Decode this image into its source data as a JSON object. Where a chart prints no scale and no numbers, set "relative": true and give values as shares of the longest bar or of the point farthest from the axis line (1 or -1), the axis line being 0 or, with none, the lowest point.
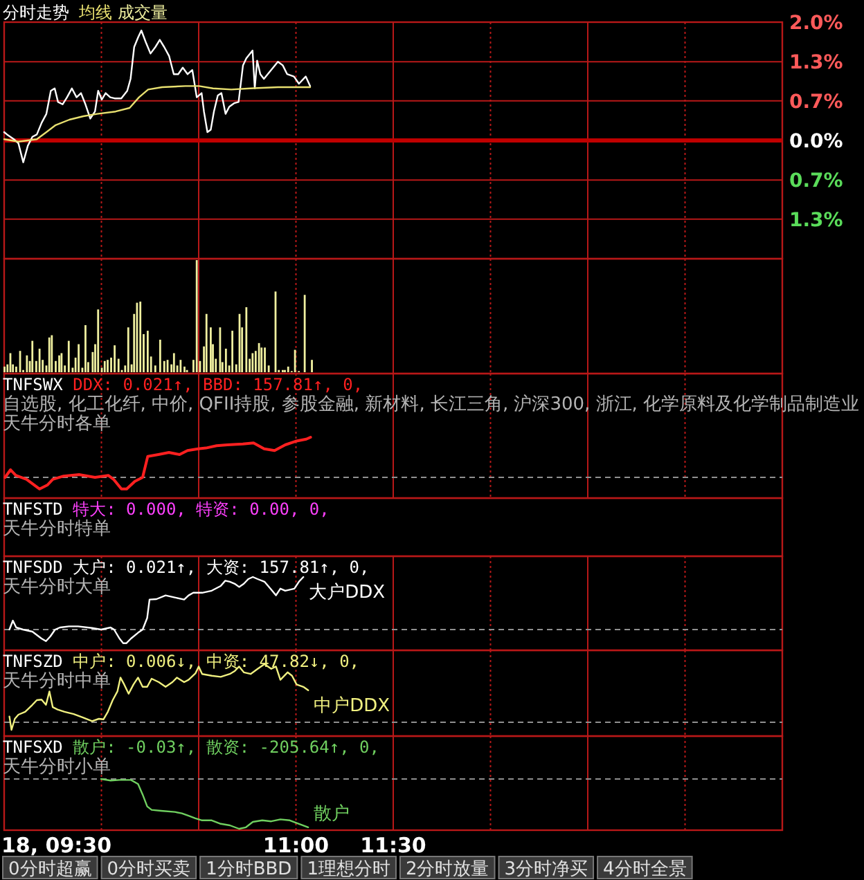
{
  "chart_data": [
    {
      "type": "line",
      "title": "分时走势",
      "legend": "top left",
      "xlim": [
        9.5,
        13.5
      ],
      "xticks": [
        {
          "value": 9.5,
          "label": null
        },
        {
          "value": 10,
          "label": null
        },
        {
          "value": 10.5,
          "label": null
        },
        {
          "value": 11,
          "label": null
        },
        {
          "value": 11.5,
          "label": null
        },
        {
          "value": 12,
          "label": null
        },
        {
          "value": 12.5,
          "label": null
        },
        {
          "value": 13,
          "label": null
        },
        {
          "value": 13.5,
          "label": null
        }
      ],
      "ylim": [
        -2.0,
        2.0
      ],
      "yticks": [
        {
          "value": 2.0,
          "label": "2.0%"
        },
        {
          "value": 1.33,
          "label": "1.3%"
        },
        {
          "value": 0.67,
          "label": "0.7%"
        },
        {
          "value": 0,
          "label": "0.0%"
        },
        {
          "value": -0.67,
          "label": "0.7%"
        },
        {
          "value": -1.33,
          "label": "1.3%"
        },
        {
          "value": -2.0,
          "label": null
        }
      ],
      "grid": true,
      "tick_labels": "y",
      "ref_lines": [
        {
          "axis": "y",
          "value": 0,
          "color": "#c00000"
        }
      ],
      "series": [
        {
          "color": "#ffffff",
          "x": [
            9.5,
            9.515,
            9.55,
            9.573,
            9.598,
            9.622,
            9.645,
            9.668,
            9.693,
            9.717,
            9.74,
            9.76,
            9.777,
            9.8,
            9.823,
            9.848,
            9.872,
            9.895,
            9.918,
            9.943,
            9.967,
            9.983,
            10.002,
            10.022,
            10.045,
            10.068,
            10.102,
            10.133,
            10.15,
            10.168,
            10.188,
            10.205,
            10.228,
            10.252,
            10.277,
            10.3,
            10.323,
            10.348,
            10.372,
            10.395,
            10.418,
            10.443,
            10.467,
            10.49,
            10.515,
            10.527,
            10.545,
            10.562,
            10.578,
            10.598,
            10.617,
            10.638,
            10.657,
            10.682,
            10.705,
            10.728,
            10.745,
            10.777,
            10.788,
            10.8,
            10.817,
            10.835,
            10.872,
            10.907,
            10.932,
            10.955,
            10.99,
            11.015,
            11.05,
            11.073
          ],
          "values": [
            0.14,
            0.1,
            0.02,
            -0.05,
            -0.37,
            -0.09,
            0.06,
            0.1,
            0.3,
            0.45,
            0.84,
            0.88,
            0.65,
            0.61,
            0.73,
            0.88,
            0.73,
            0.8,
            0.61,
            0.37,
            0.49,
            0.84,
            0.69,
            0.8,
            0.73,
            0.71,
            0.71,
            0.84,
            1.04,
            1.58,
            1.74,
            1.86,
            1.66,
            1.47,
            1.58,
            1.7,
            1.58,
            1.43,
            1.12,
            1.12,
            1.23,
            1.12,
            1.19,
            0.73,
            0.8,
            0.49,
            0.14,
            0.18,
            0.49,
            0.76,
            0.8,
            0.45,
            0.57,
            0.63,
            0.65,
            1.27,
            1.39,
            1.52,
            0.88,
            1.35,
            1.12,
            1.04,
            1.19,
            1.33,
            1.27,
            1.12,
            1.08,
            0.96,
            1.08,
            0.92
          ]
        },
        {
          "name": "均线",
          "color": "#e8e070",
          "x": [
            9.5,
            9.573,
            9.668,
            9.717,
            9.765,
            9.835,
            9.907,
            9.978,
            10.073,
            10.145,
            10.193,
            10.24,
            10.312,
            10.432,
            10.502,
            10.573,
            10.668,
            10.765,
            10.907,
            11.073
          ],
          "values": [
            0.02,
            -0.02,
            0.02,
            0.14,
            0.26,
            0.35,
            0.41,
            0.45,
            0.49,
            0.55,
            0.73,
            0.86,
            0.9,
            0.92,
            0.92,
            0.88,
            0.86,
            0.88,
            0.9,
            0.9
          ]
        }
      ]
    },
    {
      "type": "bar",
      "relative": true,
      "legend": "top left",
      "xlim": [
        9.5,
        13.5
      ],
      "xticks": [
        {
          "value": 9.5,
          "label": null
        },
        {
          "value": 10,
          "label": null
        },
        {
          "value": 10.5,
          "label": null
        },
        {
          "value": 11,
          "label": null
        },
        {
          "value": 11.5,
          "label": null
        },
        {
          "value": 12,
          "label": null
        },
        {
          "value": 12.5,
          "label": null
        },
        {
          "value": 13,
          "label": null
        },
        {
          "value": 13.5,
          "label": null
        }
      ],
      "grid": "x",
      "tick_labels": false,
      "x": [
        9.502,
        9.517,
        9.532,
        9.545,
        9.562,
        9.582,
        9.598,
        9.617,
        9.632,
        9.645,
        9.665,
        9.682,
        9.698,
        9.717,
        9.732,
        9.745,
        9.765,
        9.783,
        9.795,
        9.812,
        9.832,
        9.852,
        9.867,
        9.883,
        9.902,
        9.918,
        9.932,
        9.955,
        9.968,
        9.983,
        10.002,
        10.017,
        10.032,
        10.05,
        10.068,
        10.088,
        10.105,
        10.122,
        10.138,
        10.155,
        10.168,
        10.183,
        10.2,
        10.217,
        10.238,
        10.255,
        10.277,
        10.302,
        10.323,
        10.34,
        10.36,
        10.373,
        10.39,
        10.407,
        10.427,
        10.44,
        10.473,
        10.49,
        10.507,
        10.527,
        10.54,
        10.562,
        10.573,
        10.588,
        10.61,
        10.622,
        10.64,
        10.657,
        10.673,
        10.693,
        10.71,
        10.723,
        10.745,
        10.762,
        10.777,
        10.793,
        10.81,
        10.823,
        10.84,
        10.86,
        10.895,
        10.912,
        10.932,
        10.943,
        10.96,
        10.978,
        10.995,
        11.015,
        11.045,
        11.082
      ],
      "series": [
        {
          "name": "成交量",
          "color": "#f0f0a0",
          "values": [
            0.05,
            0.07,
            0.17,
            0.07,
            0.05,
            0.19,
            0.02,
            0.15,
            0.1,
            0.28,
            0.1,
            0.21,
            0.11,
            0.06,
            0.31,
            0.33,
            0.1,
            0.15,
            0.17,
            0.06,
            0.28,
            0.04,
            0.13,
            0.25,
            0.04,
            0.42,
            0.09,
            0.18,
            0.25,
            0.56,
            0.04,
            0.1,
            0.11,
            0.13,
            0.24,
            0.12,
            0.02,
            0.06,
            0.4,
            0.07,
            0.52,
            0.62,
            0.63,
            0.34,
            0.37,
            0.14,
            0.06,
            0.29,
            0.1,
            0.11,
            0.07,
            0.17,
            0.06,
            0.11,
            0.05,
            0.02,
            0.11,
            1,
            0.1,
            0.23,
            0.52,
            0.4,
            0.25,
            0.12,
            0.4,
            0.09,
            0.21,
            0.06,
            0.37,
            0.07,
            0.52,
            0.4,
            0.58,
            0.12,
            0.17,
            0.19,
            0.26,
            0.22,
            0.22,
            0.06,
            0.72,
            0.02,
            0.02,
            0.02,
            0.05,
            0.01,
            0.2,
            0.01,
            0.69,
            0.11
          ]
        }
      ]
    },
    {
      "type": "line",
      "relative": true,
      "title": "TNFSWX",
      "subtitle": "DDX: 0.021↑, BBD: 157.81↑, 0,",
      "annotations": [
        "自选股, 化工化纤, 中价, QFII持股, 参股金融, 新材料, 长江三角, 沪深300, 浙江, 化学原料及化学制品制造业",
        "天牛分时各单"
      ],
      "xlim": [
        9.5,
        13.5
      ],
      "xticks": [
        {
          "value": 9.5,
          "label": null
        },
        {
          "value": 10,
          "label": null
        },
        {
          "value": 10.5,
          "label": null
        },
        {
          "value": 11,
          "label": null
        },
        {
          "value": 11.5,
          "label": null
        },
        {
          "value": 12,
          "label": null
        },
        {
          "value": 12.5,
          "label": null
        },
        {
          "value": 13,
          "label": null
        },
        {
          "value": 13.5,
          "label": null
        }
      ],
      "grid": "x",
      "tick_labels": false,
      "ref_lines": [
        {
          "axis": "y",
          "value": 0,
          "color": "#909090",
          "line_style": "dashed"
        }
      ],
      "series": [
        {
          "color": "#ff2020",
          "x": [
            9.505,
            9.533,
            9.56,
            9.615,
            9.682,
            9.723,
            9.75,
            9.805,
            9.885,
            9.967,
            10.035,
            10.062,
            10.103,
            10.13,
            10.172,
            10.212,
            10.238,
            10.293,
            10.347,
            10.402,
            10.442,
            10.497,
            10.537,
            10.592,
            10.647,
            10.727,
            10.782,
            10.837,
            10.89,
            10.945,
            10.998,
            11.053,
            11.075
          ],
          "values": [
            0,
            0.19,
            0.05,
            -0.05,
            -0.29,
            -0.19,
            -0.05,
            0.03,
            0.07,
            0,
            0.05,
            -0.05,
            -0.29,
            -0.29,
            -0.1,
            0,
            0.52,
            0.57,
            0.62,
            0.57,
            0.67,
            0.71,
            0.73,
            0.79,
            0.81,
            0.83,
            0.86,
            0.71,
            0.67,
            0.81,
            0.9,
            0.95,
            1
          ]
        }
      ]
    },
    {
      "type": "other",
      "title": "TNFSTD",
      "subtitle": "特大: 0.000, 特资: 0.00, 0,",
      "annotations": [
        "天牛分时特单"
      ]
    },
    {
      "type": "line",
      "relative": true,
      "title": "TNFSDD",
      "subtitle": "大户: 0.021↑, 大资: 157.81↑, 0,",
      "annotations": [
        "天牛分时大单"
      ],
      "xlim": [
        9.5,
        13.5
      ],
      "xticks": [
        {
          "value": 9.5,
          "label": null
        },
        {
          "value": 10,
          "label": null
        },
        {
          "value": 10.5,
          "label": null
        },
        {
          "value": 11,
          "label": null
        },
        {
          "value": 11.5,
          "label": null
        },
        {
          "value": 12,
          "label": null
        },
        {
          "value": 12.5,
          "label": null
        },
        {
          "value": 13,
          "label": null
        },
        {
          "value": 13.5,
          "label": null
        }
      ],
      "grid": "x",
      "tick_labels": false,
      "ref_lines": [
        {
          "axis": "y",
          "value": 0,
          "color": "#909090",
          "line_style": "dashed"
        }
      ],
      "series": [
        {
          "name": "大户DDX",
          "color": "#ffffff",
          "x": [
            9.527,
            9.545,
            9.562,
            9.597,
            9.645,
            9.692,
            9.715,
            9.738,
            9.762,
            9.787,
            9.833,
            9.88,
            9.952,
            9.998,
            10.047,
            10.065,
            10.093,
            10.112,
            10.128,
            10.152,
            10.188,
            10.212,
            10.235,
            10.247,
            10.283,
            10.33,
            10.377,
            10.425,
            10.448,
            10.472,
            10.518,
            10.567,
            10.613,
            10.637,
            10.66,
            10.685,
            10.708,
            10.732,
            10.755,
            10.778,
            10.803,
            10.838,
            10.873,
            10.897,
            10.92,
            10.945,
            10.992,
            11.015,
            11.038
          ],
          "values": [
            0,
            0.17,
            0.04,
            0,
            -0.04,
            -0.17,
            -0.22,
            -0.13,
            0,
            0.04,
            0.06,
            0.06,
            0.03,
            0,
            0.04,
            0,
            -0.17,
            -0.26,
            -0.26,
            -0.17,
            -0.06,
            0,
            0.22,
            0.57,
            0.58,
            0.65,
            0.61,
            0.57,
            0.65,
            0.7,
            0.7,
            0.74,
            0.83,
            0.93,
            0.91,
            0.87,
            0.81,
            0.87,
            0.96,
            1,
            0.96,
            0.91,
            0.76,
            0.65,
            0.78,
            0.74,
            0.78,
            0.91,
            1
          ]
        }
      ]
    },
    {
      "type": "line",
      "relative": true,
      "title": "TNFSZD",
      "subtitle": "中户: 0.006↓, 中资: 47.82↓, 0,",
      "annotations": [
        "天牛分时中单"
      ],
      "xlim": [
        9.5,
        13.5
      ],
      "xticks": [
        {
          "value": 9.5,
          "label": null
        },
        {
          "value": 10,
          "label": null
        },
        {
          "value": 10.5,
          "label": null
        },
        {
          "value": 11,
          "label": null
        },
        {
          "value": 11.5,
          "label": null
        },
        {
          "value": 12,
          "label": null
        },
        {
          "value": 12.5,
          "label": null
        },
        {
          "value": 13,
          "label": null
        },
        {
          "value": 13.5,
          "label": null
        }
      ],
      "grid": "x",
      "tick_labels": false,
      "ref_lines": [
        {
          "axis": "y",
          "value": 0,
          "color": "#909090",
          "line_style": "dashed"
        }
      ],
      "series": [
        {
          "name": "中户DDX",
          "color": "#f0f080",
          "x": [
            9.527,
            9.538,
            9.555,
            9.573,
            9.608,
            9.645,
            9.668,
            9.692,
            9.715,
            9.733,
            9.75,
            9.775,
            9.81,
            9.857,
            9.905,
            9.952,
            9.987,
            10.01,
            10.033,
            10.058,
            10.082,
            10.098,
            10.117,
            10.14,
            10.165,
            10.188,
            10.212,
            10.235,
            10.258,
            10.295,
            10.33,
            10.365,
            10.388,
            10.425,
            10.448,
            10.483,
            10.5,
            10.518,
            10.567,
            10.613,
            10.66,
            10.685,
            10.708,
            10.732,
            10.767,
            10.803,
            10.838,
            10.873,
            10.897,
            10.92,
            10.957,
            10.98,
            11.003,
            11.038,
            11.063
          ],
          "values": [
            0.1,
            -0.13,
            0.06,
            0.13,
            0.18,
            0.3,
            0.38,
            0.39,
            0.3,
            0.53,
            0.26,
            0.22,
            0.18,
            0.14,
            0.08,
            0.02,
            0.06,
            0.05,
            0.18,
            0.38,
            0.53,
            0.77,
            0.65,
            0.49,
            0.65,
            0.77,
            0.61,
            0.61,
            0.75,
            0.69,
            0.61,
            0.69,
            0.77,
            0.69,
            0.73,
            0.84,
            0.96,
            0.83,
            0.8,
            0.78,
            0.83,
            0.88,
            0.96,
            0.86,
            0.83,
            0.92,
            1,
            0.92,
            0.96,
            0.73,
            0.86,
            0.8,
            0.65,
            0.61,
            0.55
          ]
        }
      ]
    },
    {
      "type": "line",
      "relative": true,
      "title": "TNFSXD",
      "subtitle": "散户: -0.03↑, 散资: -205.64↑, 0,",
      "annotations": [
        "天牛分时小单",
        "0分时超赢",
        "0分时买卖",
        "1分时BBD",
        "1理想分时",
        "2分时放量",
        "3分时净买",
        "4分时全景"
      ],
      "xlim": [
        9.5,
        13.5
      ],
      "xticks": [
        {
          "value": 9.5,
          "label": "18, 09:30"
        },
        {
          "value": 10,
          "label": null
        },
        {
          "value": 10.5,
          "label": null
        },
        {
          "value": 11,
          "label": "11:00"
        },
        {
          "value": 11.5,
          "label": "11:30"
        },
        {
          "value": 12,
          "label": null
        },
        {
          "value": 12.5,
          "label": null
        },
        {
          "value": 13,
          "label": null
        },
        {
          "value": 13.5,
          "label": null
        }
      ],
      "grid": "x",
      "tick_labels": "x",
      "ref_lines": [
        {
          "axis": "y",
          "value": 0,
          "color": "#909090",
          "line_style": "dashed"
        }
      ],
      "series": [
        {
          "name": "散户",
          "color": "#70d060",
          "x": [
            9.998,
            10.047,
            10.093,
            10.152,
            10.188,
            10.212,
            10.235,
            10.258,
            10.307,
            10.377,
            10.413,
            10.448,
            10.483,
            10.518,
            10.567,
            10.613,
            10.66,
            10.708,
            10.743,
            10.778,
            10.827,
            10.873,
            10.92,
            10.968,
            11.015,
            11.063
          ],
          "values": [
            0,
            -0.03,
            -0.02,
            -0.02,
            -0.1,
            -0.31,
            -0.55,
            -0.62,
            -0.64,
            -0.66,
            -0.69,
            -0.74,
            -0.79,
            -0.83,
            -0.83,
            -0.9,
            -0.93,
            -1,
            -0.97,
            -0.86,
            -0.83,
            -0.85,
            -0.81,
            -0.83,
            -0.9,
            -0.97
          ]
        }
      ]
    }
  ]
}
